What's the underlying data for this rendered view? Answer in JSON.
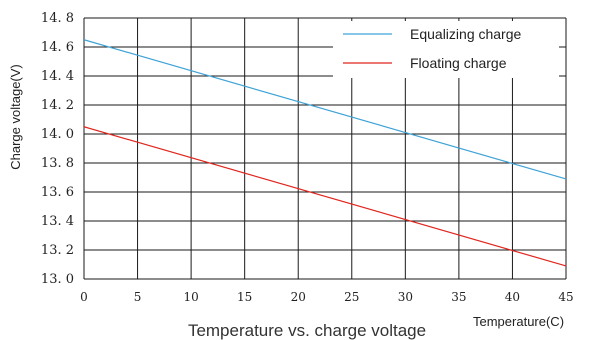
{
  "chart_data": {
    "type": "line",
    "title": "Temperature vs. charge voltage",
    "xlabel": "Temperature(C)",
    "ylabel": "Charge voltage(V)",
    "xlim": [
      0,
      45
    ],
    "ylim": [
      13.0,
      14.8
    ],
    "xticks": [
      "0",
      "5",
      "10",
      "15",
      "20",
      "25",
      "30",
      "35",
      "40",
      "45"
    ],
    "yticks": [
      "13.0",
      "13.2",
      "13.4",
      "13.6",
      "13.8",
      "14.0",
      "14.2",
      "14.4",
      "14.6",
      "14.8"
    ],
    "grid": true,
    "legend_position": "top-right",
    "series": [
      {
        "name": "Equalizing charge",
        "color": "#3fa3d6",
        "x": [
          0,
          45
        ],
        "y": [
          14.65,
          13.69
        ]
      },
      {
        "name": "Floating charge",
        "color": "#e0261e",
        "x": [
          0,
          45
        ],
        "y": [
          14.05,
          13.09
        ]
      }
    ]
  }
}
